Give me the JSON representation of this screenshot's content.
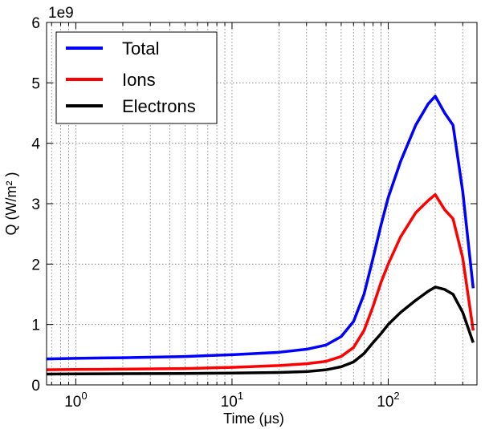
{
  "chart_data": {
    "type": "line",
    "xscale": "log",
    "xlim": [
      0.65,
      370
    ],
    "ylim": [
      0,
      6000000000
    ],
    "y_offset_text": "1e9",
    "xlabel": "Time (μs)",
    "ylabel": "Q (W/m² )",
    "xticks": [
      1,
      10,
      100
    ],
    "xtick_labels": [
      {
        "base": "10",
        "exp": "0"
      },
      {
        "base": "10",
        "exp": "1"
      },
      {
        "base": "10",
        "exp": "2"
      }
    ],
    "yticks": [
      0,
      1,
      2,
      3,
      4,
      5,
      6
    ],
    "grid": true,
    "legend_position": "top-left",
    "series": [
      {
        "name": "Total",
        "color": "#0000ff",
        "x": [
          0.65,
          1,
          2,
          5,
          10,
          20,
          30,
          40,
          50,
          60,
          70,
          80,
          90,
          100,
          120,
          150,
          180,
          200,
          230,
          260,
          300,
          350
        ],
        "y": [
          430000000,
          440000000,
          450000000,
          470000000,
          500000000,
          540000000,
          590000000,
          660000000,
          800000000,
          1050000000,
          1500000000,
          2100000000,
          2650000000,
          3100000000,
          3700000000,
          4300000000,
          4650000000,
          4780000000,
          4500000000,
          4300000000,
          3200000000,
          1600000000
        ]
      },
      {
        "name": "Ions",
        "color": "#ff0000",
        "x": [
          0.65,
          1,
          2,
          5,
          10,
          20,
          30,
          40,
          50,
          60,
          70,
          80,
          90,
          100,
          120,
          150,
          180,
          200,
          230,
          260,
          300,
          350
        ],
        "y": [
          250000000,
          255000000,
          260000000,
          270000000,
          290000000,
          320000000,
          350000000,
          390000000,
          470000000,
          620000000,
          900000000,
          1300000000,
          1700000000,
          2000000000,
          2450000000,
          2850000000,
          3050000000,
          3150000000,
          2900000000,
          2750000000,
          2100000000,
          900000000
        ]
      },
      {
        "name": "Electrons",
        "color": "#000000",
        "x": [
          0.65,
          1,
          2,
          5,
          10,
          20,
          30,
          40,
          50,
          60,
          70,
          80,
          90,
          100,
          120,
          150,
          180,
          200,
          230,
          260,
          300,
          350
        ],
        "y": [
          180000000,
          182000000,
          185000000,
          190000000,
          195000000,
          205000000,
          220000000,
          250000000,
          300000000,
          380000000,
          520000000,
          700000000,
          850000000,
          1000000000,
          1200000000,
          1400000000,
          1550000000,
          1620000000,
          1580000000,
          1500000000,
          1200000000,
          700000000
        ]
      }
    ]
  }
}
